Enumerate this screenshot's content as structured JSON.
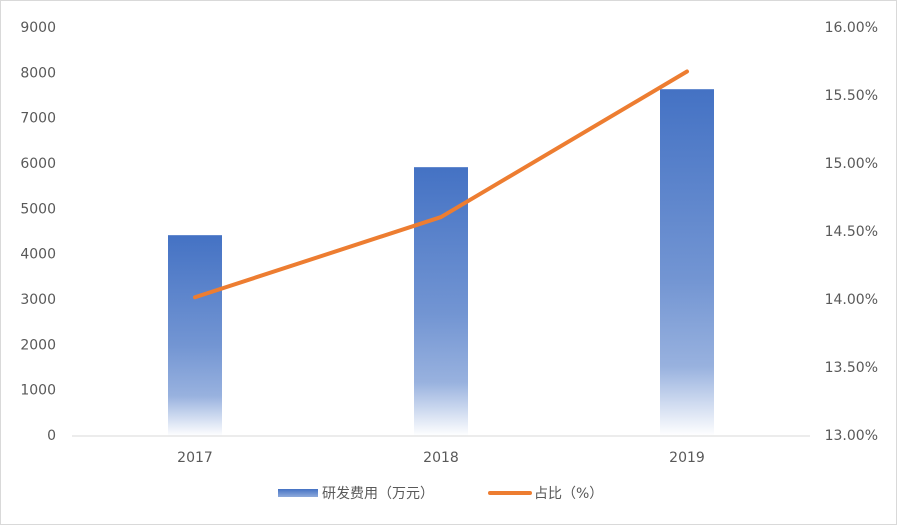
{
  "chart_data": {
    "type": "combo",
    "categories": [
      "2017",
      "2018",
      "2019"
    ],
    "series": [
      {
        "name": "研发费用（万元）",
        "type": "bar",
        "color": "#4472c4",
        "values": [
          4430,
          5930,
          7650
        ]
      },
      {
        "name": "占比（%）",
        "type": "line",
        "color": "#ed7d31",
        "axis": "y2",
        "values": [
          14.02,
          14.61,
          15.68
        ]
      }
    ],
    "ylim": [
      0,
      9000
    ],
    "yticks": [
      0,
      1000,
      2000,
      3000,
      4000,
      5000,
      6000,
      7000,
      8000,
      9000
    ],
    "y2lim": [
      13,
      16
    ],
    "y2ticks": [
      {
        "value": 13,
        "label": "13.00%"
      },
      {
        "value": 13.5,
        "label": "13.50%"
      },
      {
        "value": 14,
        "label": "14.00%"
      },
      {
        "value": 14.5,
        "label": "14.50%"
      },
      {
        "value": 15,
        "label": "15.00%"
      },
      {
        "value": 15.5,
        "label": "15.50%"
      },
      {
        "value": 16,
        "label": "16.00%"
      }
    ],
    "grid": false,
    "legend": "bottom"
  }
}
